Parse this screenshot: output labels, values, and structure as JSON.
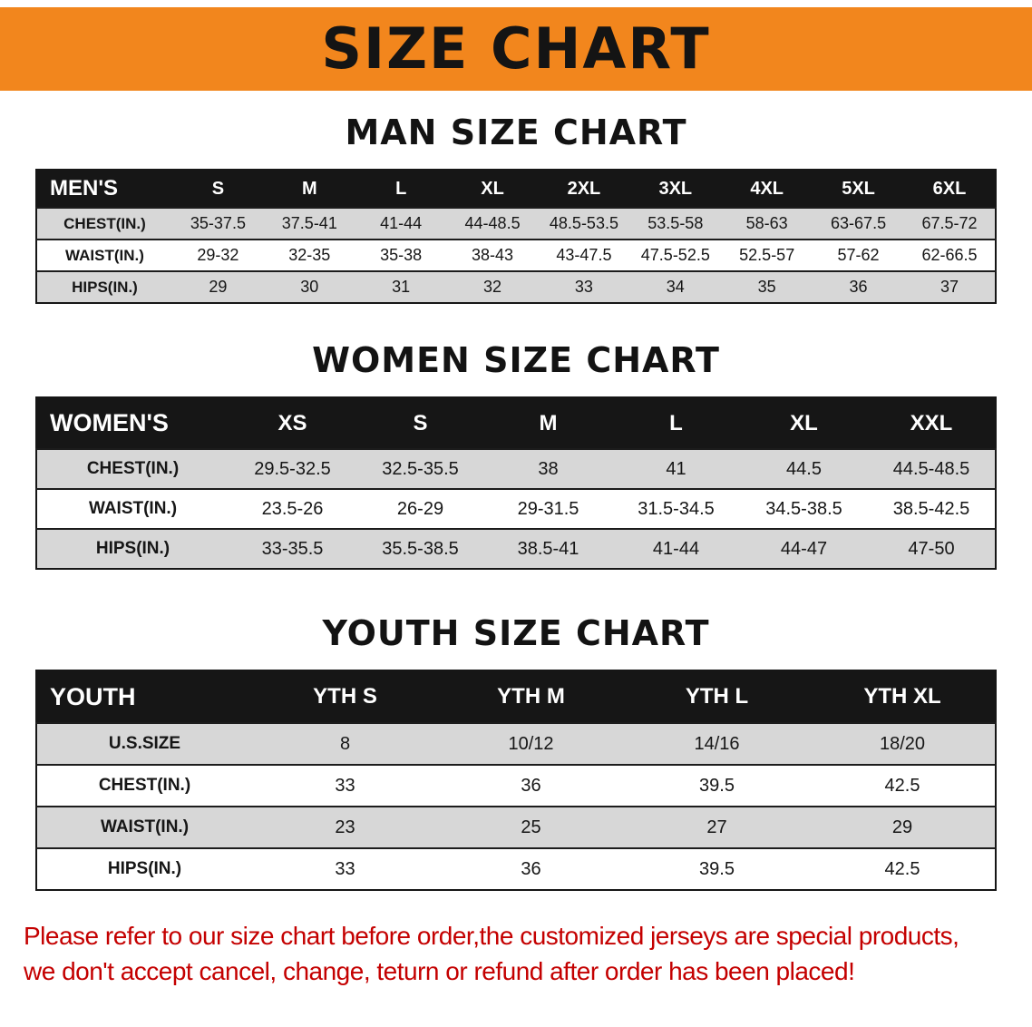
{
  "banner": {
    "title": "SIZE CHART",
    "bg_color": "#F2861D"
  },
  "sections": [
    {
      "id": "men",
      "heading": "MAN SIZE CHART",
      "table": {
        "header": [
          "MEN'S",
          "S",
          "M",
          "L",
          "XL",
          "2XL",
          "3XL",
          "4XL",
          "5XL",
          "6XL"
        ],
        "rows": [
          {
            "label": "CHEST(IN.)",
            "values": [
              "35-37.5",
              "37.5-41",
              "41-44",
              "44-48.5",
              "48.5-53.5",
              "53.5-58",
              "58-63",
              "63-67.5",
              "67.5-72"
            ]
          },
          {
            "label": "WAIST(IN.)",
            "values": [
              "29-32",
              "32-35",
              "35-38",
              "38-43",
              "43-47.5",
              "47.5-52.5",
              "52.5-57",
              "57-62",
              "62-66.5"
            ]
          },
          {
            "label": "HIPS(IN.)",
            "values": [
              "29",
              "30",
              "31",
              "32",
              "33",
              "34",
              "35",
              "36",
              "37"
            ]
          }
        ]
      }
    },
    {
      "id": "women",
      "heading": "WOMEN SIZE CHART",
      "table": {
        "header": [
          "WOMEN'S",
          "XS",
          "S",
          "M",
          "L",
          "XL",
          "XXL"
        ],
        "rows": [
          {
            "label": "CHEST(IN.)",
            "values": [
              "29.5-32.5",
              "32.5-35.5",
              "38",
              "41",
              "44.5",
              "44.5-48.5"
            ]
          },
          {
            "label": "WAIST(IN.)",
            "values": [
              "23.5-26",
              "26-29",
              "29-31.5",
              "31.5-34.5",
              "34.5-38.5",
              "38.5-42.5"
            ]
          },
          {
            "label": "HIPS(IN.)",
            "values": [
              "33-35.5",
              "35.5-38.5",
              "38.5-41",
              "41-44",
              "44-47",
              "47-50"
            ]
          }
        ]
      }
    },
    {
      "id": "youth",
      "heading": "YOUTH SIZE CHART",
      "table": {
        "header": [
          "YOUTH",
          "YTH S",
          "YTH M",
          "YTH L",
          "YTH XL"
        ],
        "rows": [
          {
            "label": "U.S.SIZE",
            "values": [
              "8",
              "10/12",
              "14/16",
              "18/20"
            ]
          },
          {
            "label": "CHEST(IN.)",
            "values": [
              "33",
              "36",
              "39.5",
              "42.5"
            ]
          },
          {
            "label": "WAIST(IN.)",
            "values": [
              "23",
              "25",
              "27",
              "29"
            ]
          },
          {
            "label": "HIPS(IN.)",
            "values": [
              "33",
              "36",
              "39.5",
              "42.5"
            ]
          }
        ]
      }
    }
  ],
  "footer": {
    "line1": "Please refer to our size chart before order,the customized jerseys are special products,",
    "line2": "we don't accept cancel, change, teturn or refund after order has been placed!",
    "text_color": "#C40000"
  }
}
